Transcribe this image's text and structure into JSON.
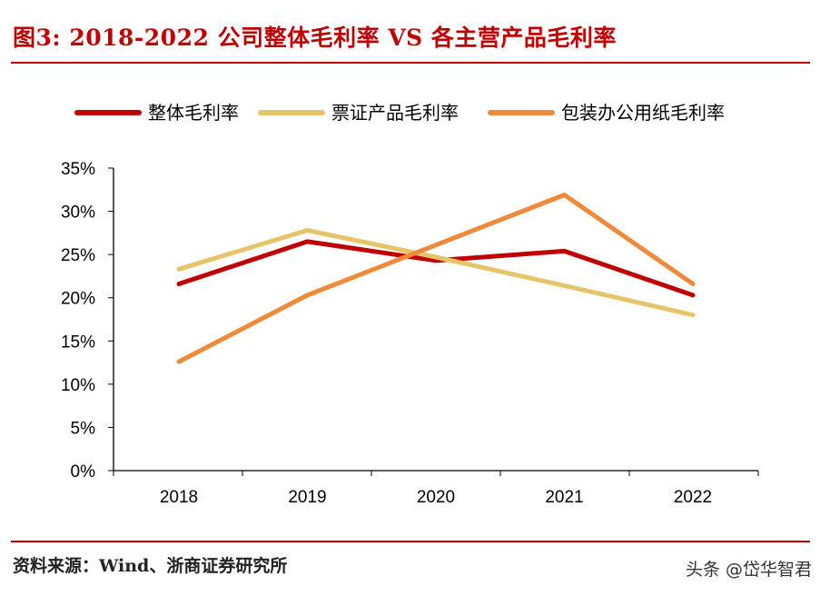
{
  "title": "图3:  2018-2022 公司整体毛利率 VS 各主营产品毛利率",
  "source": "资料来源：Wind、浙商证券研究所",
  "watermark": "头条 @岱华智君",
  "chart_data": {
    "type": "line",
    "categories": [
      "2018",
      "2019",
      "2020",
      "2021",
      "2022"
    ],
    "ylim": [
      0,
      35
    ],
    "yticks": [
      "0%",
      "5%",
      "10%",
      "15%",
      "20%",
      "25%",
      "30%",
      "35%"
    ],
    "legend_position": "top",
    "grid": false,
    "series": [
      {
        "name": "整体毛利率",
        "color": "#c00000",
        "values": [
          21.6,
          26.5,
          24.3,
          25.4,
          20.3
        ]
      },
      {
        "name": "票证产品毛利率",
        "color": "#e6c46a",
        "values": [
          23.3,
          27.8,
          24.7,
          21.4,
          18.0
        ]
      },
      {
        "name": "包装办公用纸毛利率",
        "color": "#ee8a3a",
        "values": [
          12.6,
          20.3,
          26.1,
          31.9,
          21.6
        ]
      }
    ]
  }
}
